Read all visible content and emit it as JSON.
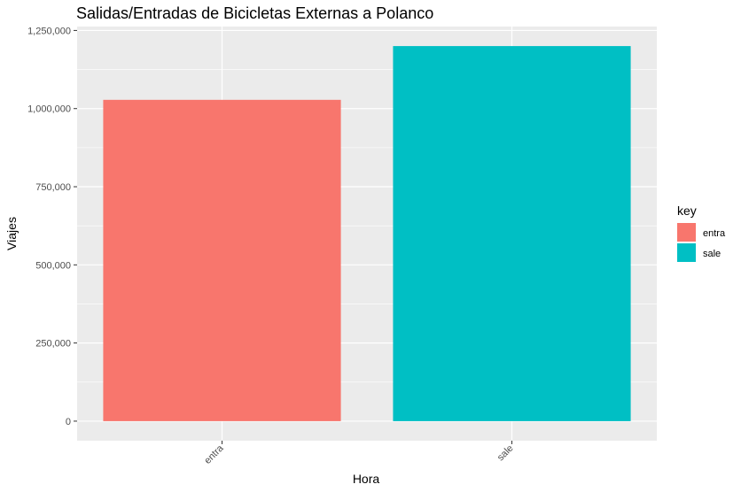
{
  "chart_data": {
    "type": "bar",
    "title": "Salidas/Entradas de Bicicletas Externas a Polanco",
    "xlabel": "Hora",
    "ylabel": "Viajes",
    "categories": [
      "entra",
      "sale"
    ],
    "values": [
      1028000,
      1200000
    ],
    "colors": [
      "#F8766D",
      "#00BFC4"
    ],
    "ylim": [
      -62500,
      1262500
    ],
    "yticks": [
      0,
      250000,
      500000,
      750000,
      1000000,
      1250000
    ],
    "ytick_labels": [
      "0",
      "250,000",
      "500,000",
      "750,000",
      "1,000,000",
      "1,250,000"
    ],
    "grid": true,
    "background": "#EBEBEB",
    "legend": {
      "title": "key",
      "position": "right",
      "entries": [
        "entra",
        "sale"
      ]
    }
  }
}
